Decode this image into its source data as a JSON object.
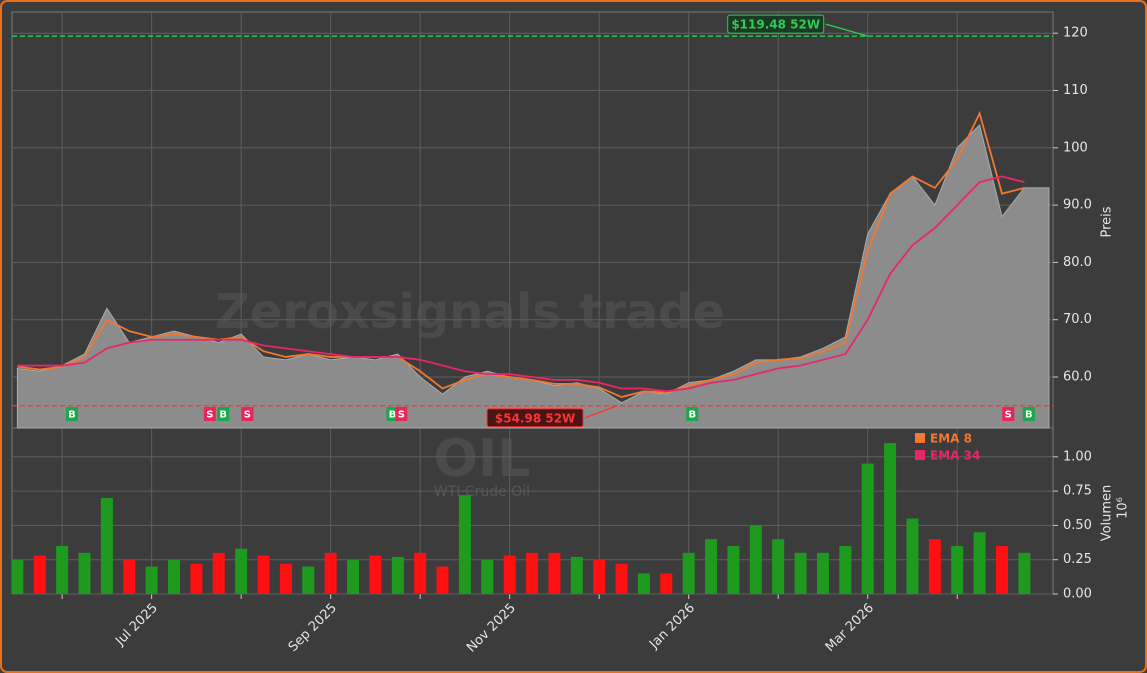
{
  "chart_data": {
    "type": "line",
    "watermark": "Zeroxsignals.trade",
    "symbol": "OIL",
    "symbol_name": "WTI Crude Oil",
    "x": [
      -0.5,
      -0.25,
      0,
      0.25,
      0.5,
      0.75,
      1,
      1.25,
      1.5,
      1.75,
      2,
      2.25,
      2.5,
      2.75,
      3,
      3.25,
      3.5,
      3.75,
      4,
      4.25,
      4.5,
      4.75,
      5,
      5.25,
      5.5,
      5.75,
      6,
      6.25,
      6.5,
      6.75,
      7,
      7.25,
      7.5,
      7.75,
      8,
      8.25,
      8.5,
      8.75,
      9,
      9.25,
      9.5,
      9.75,
      10,
      10.25,
      10.5,
      10.75
    ],
    "xlim": [
      -0.56,
      11.07
    ],
    "xticks": [
      {
        "value": 0,
        "label": null
      },
      {
        "value": 1,
        "label": "Jul 2025"
      },
      {
        "value": 2,
        "label": null
      },
      {
        "value": 3,
        "label": "Sep 2025"
      },
      {
        "value": 4,
        "label": null
      },
      {
        "value": 5,
        "label": "Nov 2025"
      },
      {
        "value": 6,
        "label": null
      },
      {
        "value": 7,
        "label": "Jan 2026"
      },
      {
        "value": 8,
        "label": null
      },
      {
        "value": 9,
        "label": "Mar 2026"
      },
      {
        "value": 10,
        "label": null
      }
    ],
    "price": {
      "color": "#8c8c8c",
      "values": [
        61.5,
        61,
        62,
        64,
        72,
        66,
        67,
        68,
        67,
        66,
        67.5,
        63.5,
        63,
        64,
        63,
        63.5,
        63,
        64,
        60,
        57,
        60,
        61,
        60,
        59.5,
        58.5,
        59,
        58,
        55.5,
        57.5,
        57,
        59,
        59.5,
        61,
        63,
        63,
        63.5,
        65,
        67,
        85,
        92,
        95,
        90,
        100,
        104,
        88,
        93
      ]
    },
    "series": [
      {
        "name": "EMA 8",
        "color": "#f07830",
        "values": [
          61.8,
          61.3,
          61.8,
          63.5,
          70,
          68,
          67,
          67.5,
          67,
          66.5,
          67,
          64.5,
          63.5,
          64,
          63.5,
          63.5,
          63.5,
          63.5,
          61,
          58,
          59.5,
          60.5,
          60,
          59.5,
          58.8,
          58.8,
          58.2,
          56.5,
          57.5,
          57.3,
          58.5,
          59.5,
          60.5,
          62.5,
          63,
          63.3,
          64.5,
          66,
          82,
          92,
          95,
          93,
          98,
          106,
          92,
          93
        ]
      },
      {
        "name": "EMA 34",
        "color": "#e8266c",
        "values": [
          62,
          62,
          62,
          62.5,
          65,
          66,
          66.5,
          66.5,
          66.5,
          66.5,
          66.5,
          65.5,
          65,
          64.5,
          64,
          63.5,
          63.5,
          63.5,
          63,
          62,
          61,
          60.5,
          60.5,
          60,
          59.5,
          59.5,
          59,
          58,
          58,
          57.5,
          58,
          59,
          59.5,
          60.5,
          61.5,
          62,
          63,
          64,
          70,
          78,
          83,
          86,
          90,
          94,
          95,
          94
        ]
      }
    ],
    "ylabel": "Preis",
    "ylim": [
      51.1,
      123.7
    ],
    "yticks": [
      {
        "value": 60,
        "label": "60.0"
      },
      {
        "value": 70,
        "label": "70.0"
      },
      {
        "value": 80,
        "label": "80.0"
      },
      {
        "value": 90,
        "label": "90.0"
      },
      100,
      110,
      120
    ],
    "annotations": [
      {
        "text": "$119.48 52W",
        "value": 119.48,
        "x": 9.0,
        "color": "#2ecc55"
      },
      {
        "text": "$54.98 52W",
        "value": 54.98,
        "x": 6.2,
        "color": "#ff3333"
      }
    ],
    "signals": [
      {
        "x": 0.11,
        "label": "B"
      },
      {
        "x": 1.65,
        "label": "S"
      },
      {
        "x": 1.8,
        "label": "B"
      },
      {
        "x": 2.07,
        "label": "S"
      },
      {
        "x": 3.69,
        "label": "B"
      },
      {
        "x": 3.79,
        "label": "S"
      },
      {
        "x": 7.04,
        "label": "B"
      },
      {
        "x": 10.57,
        "label": "S"
      },
      {
        "x": 10.8,
        "label": "B"
      }
    ],
    "buy_color": "#1aa84a",
    "sell_color": "#e8265a",
    "volume": {
      "up_color": "#1e9a1e",
      "down_color": "#ff1010",
      "values": [
        0.25,
        0.28,
        0.35,
        0.3,
        0.7,
        0.25,
        0.2,
        0.25,
        0.22,
        0.3,
        0.33,
        0.28,
        0.22,
        0.2,
        0.3,
        0.25,
        0.28,
        0.27,
        0.3,
        0.2,
        0.72,
        0.25,
        0.28,
        0.3,
        0.3,
        0.27,
        0.25,
        0.22,
        0.15,
        0.15,
        0.3,
        0.4,
        0.35,
        0.5,
        0.4,
        0.3,
        0.3,
        0.35,
        0.95,
        1.1,
        0.55,
        0.4,
        0.35,
        0.45,
        0.35,
        0.3
      ]
    },
    "y2label": "Volumen",
    "y2_multiplier": "10⁶",
    "y2lim": [
      0,
      1.21
    ],
    "y2ticks": [
      {
        "value": 0,
        "label": "0.00"
      },
      {
        "value": 0.25,
        "label": "0.25"
      },
      {
        "value": 0.5,
        "label": "0.50"
      },
      {
        "value": 0.75,
        "label": "0.75"
      },
      {
        "value": 1,
        "label": "1.00"
      }
    ],
    "grid": true
  }
}
